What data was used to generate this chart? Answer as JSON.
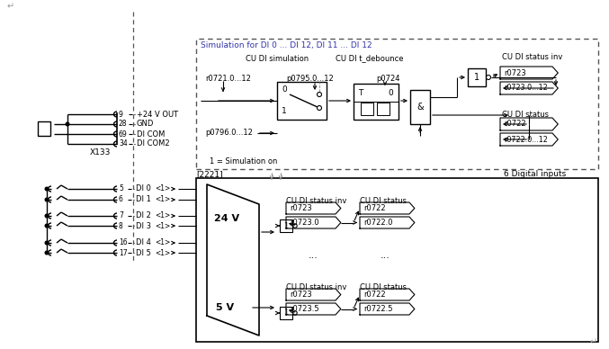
{
  "bg_color": "#ffffff",
  "fig_width": 6.77,
  "fig_height": 3.88,
  "dpi": 100,
  "return_symbol": "↵",
  "x133_label": "X133",
  "term_nums": [
    "9",
    "28",
    "69",
    "34"
  ],
  "term_labels": [
    "+24 V OUT",
    "GND",
    "DI COM",
    "DI COM2"
  ],
  "di_data": [
    [
      "5",
      "DI 0",
      "<1>"
    ],
    [
      "6",
      "DI 1",
      "<1>"
    ],
    [
      "7",
      "DI 2",
      "<1>"
    ],
    [
      "8",
      "DI 3",
      "<1>"
    ],
    [
      "16",
      "DI 4",
      "<1>"
    ],
    [
      "17",
      "DI 5",
      "<1>"
    ]
  ],
  "sim_title": "Simulation for DI 0 ... DI 12, DI 11 ... DI 12",
  "cu_di_sim": "CU DI simulation",
  "cu_di_tdeb": "CU DI t_debounce",
  "r0721": "r0721.0...12",
  "p0795": "p0795.0...12",
  "p0724": "p0724",
  "p0796": "p0796.0...12",
  "sim_on": "1 = Simulation on",
  "and_label": "&",
  "one_label": "1",
  "T_label": "T",
  "zero_label": "0",
  "cu_di_status_inv": "CU DI status inv",
  "cu_di_status": "CU DI status",
  "r0723": "r0723",
  "r0723_012": "r0723.0...12",
  "r0722": "r0722",
  "r0722_012": "r0722.0...12",
  "bracket_2221": "[2221]",
  "six_di": "6 Digital inputs",
  "v24": "24 V",
  "v5": "5 V",
  "r0723_top": "r0723",
  "r0723_0": "r0723.0",
  "r0722_top": "r0722",
  "r0722_0": "r0722.0",
  "r0723_bot": "r0723",
  "r0723_5": "r0723.5",
  "r0722_bot": "r0722",
  "r0722_5": "r0722.5",
  "dots": "...",
  "lc": "#000000",
  "gray": "#888888",
  "blue": "#3333aa"
}
